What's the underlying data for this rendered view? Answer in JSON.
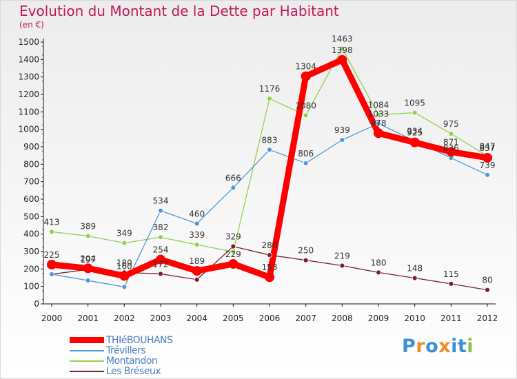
{
  "title": "Evolution du Montant de la Dette par Habitant",
  "subtitle": "(en €)",
  "logo": {
    "letters": [
      "P",
      "r",
      "o",
      "x",
      "i",
      "t",
      "i"
    ],
    "colors": [
      "#3b8fd6",
      "#f08a24",
      "#3b8fd6",
      "#f08a24",
      "#3b8fd6",
      "#3b8fd6",
      "#8bc34a"
    ]
  },
  "chart_data": {
    "type": "line",
    "title": "Evolution du Montant de la Dette par Habitant",
    "ylabel": "(en €)",
    "x": [
      "2000",
      "2001",
      "2002",
      "2003",
      "2004",
      "2005",
      "2006",
      "2007",
      "2008",
      "2009",
      "2010",
      "2011",
      "2012"
    ],
    "ylim": [
      0,
      1500
    ],
    "yticks": [
      0,
      100,
      200,
      300,
      400,
      500,
      600,
      700,
      800,
      900,
      1000,
      1100,
      1200,
      1300,
      1400,
      1500
    ],
    "grid": false,
    "legend": "bottom-left",
    "series": [
      {
        "name": "Les Bréseux",
        "color": "#7b1f2a",
        "width": 1.3,
        "values": [
          170,
          197,
          180,
          172,
          139,
          329,
          280,
          250,
          219,
          180,
          148,
          115,
          80
        ],
        "labels": [
          "",
          "197",
          "180",
          "172",
          "",
          "329",
          "280",
          "250",
          "219",
          "180",
          "148",
          "115",
          "80"
        ]
      },
      {
        "name": "Montandon",
        "color": "#92d050",
        "width": 1.3,
        "values": [
          413,
          389,
          349,
          382,
          339,
          299,
          1176,
          1080,
          1463,
          1084,
          1095,
          975,
          847
        ],
        "labels": [
          "413",
          "389",
          "349",
          "382",
          "339",
          "",
          "1176",
          "1080",
          "1463",
          "1084",
          "1095",
          "975",
          "847"
        ]
      },
      {
        "name": "Trévillers",
        "color": "#4f97d6",
        "width": 1.3,
        "values": [
          170,
          134,
          97,
          534,
          460,
          666,
          883,
          806,
          939,
          1033,
          934,
          836,
          739
        ],
        "labels": [
          "",
          "",
          "",
          "534",
          "460",
          "666",
          "883",
          "806",
          "939",
          "1033",
          "934",
          "836",
          "739"
        ]
      },
      {
        "name": "THIéBOUHANS",
        "color": "#ff0000",
        "width": 9,
        "values": [
          225,
          204,
          160,
          254,
          189,
          229,
          153,
          1304,
          1398,
          978,
          925,
          871,
          837
        ],
        "labels": [
          "225",
          "204",
          "160",
          "254",
          "189",
          "229",
          "153",
          "1304",
          "1398",
          "978",
          "925",
          "871",
          "837"
        ]
      }
    ]
  }
}
